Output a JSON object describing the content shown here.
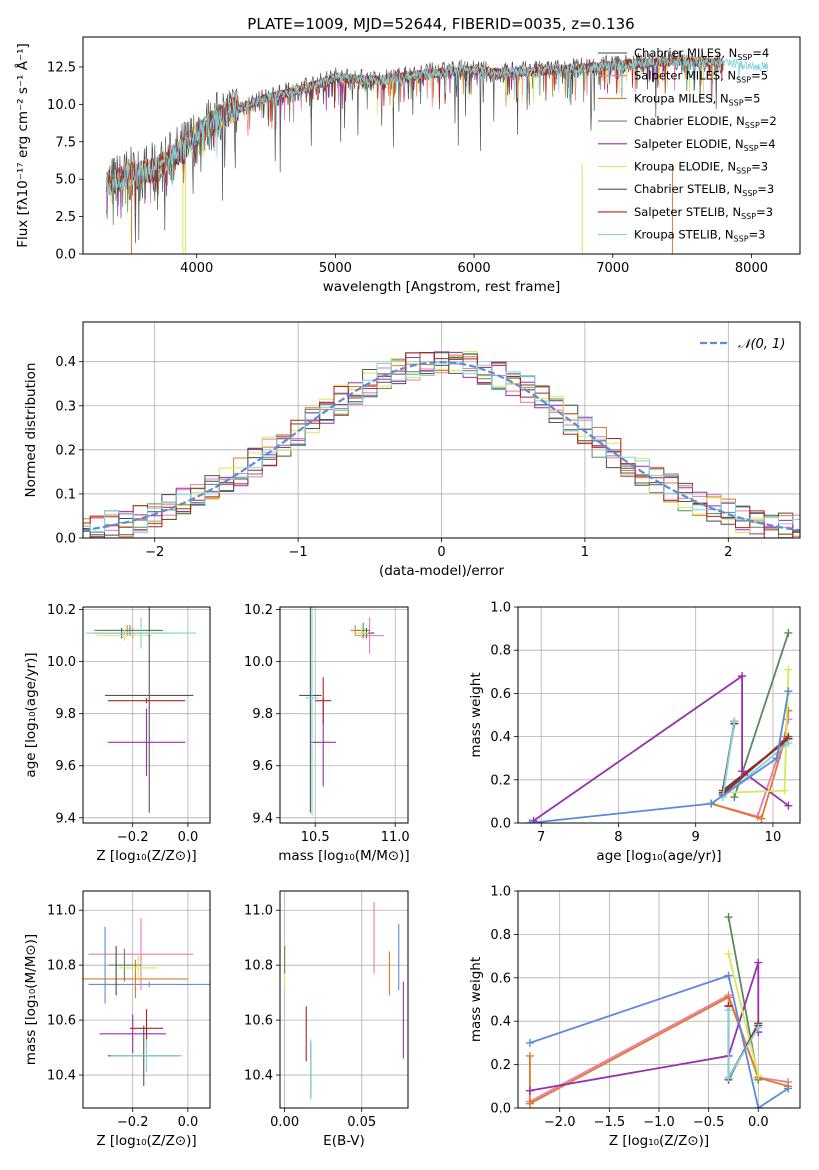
{
  "figure_title": "PLATE=1009, MJD=52644, FIBERID=0035, z=0.136",
  "models": [
    {
      "name": "Chabrier MILES",
      "nssp": 4,
      "color": "#4a4a4a"
    },
    {
      "name": "Salpeter MILES",
      "nssp": 5,
      "color": "#e87ab0"
    },
    {
      "name": "Kroupa MILES",
      "nssp": 5,
      "color": "#e07b2b"
    },
    {
      "name": "Chabrier ELODIE",
      "nssp": 2,
      "color": "#5a8a5a"
    },
    {
      "name": "Salpeter ELODIE",
      "nssp": 4,
      "color": "#9b2fae"
    },
    {
      "name": "Kroupa ELODIE",
      "nssp": 3,
      "color": "#d7e85a"
    },
    {
      "name": "Chabrier STELIB",
      "nssp": 3,
      "color": "#555555"
    },
    {
      "name": "Salpeter STELIB",
      "nssp": 3,
      "color": "#b22222"
    },
    {
      "name": "Kroupa STELIB",
      "nssp": 3,
      "color": "#7fd3dd"
    }
  ],
  "chart_data": [
    {
      "id": "spectrum",
      "type": "line",
      "xlabel": "wavelength [Angstrom, rest frame]",
      "ylabel_html": "Flux [fλ10⁻¹⁷ erg cm⁻² s⁻¹ Å⁻¹]",
      "xlim": [
        3180,
        8350
      ],
      "ylim": [
        0,
        14.5
      ],
      "xticks": [
        4000,
        5000,
        6000,
        7000,
        8000
      ],
      "yticks": [
        0.0,
        2.5,
        5.0,
        7.5,
        10.0,
        12.5
      ],
      "continuum_x": [
        3350,
        3500,
        3700,
        3900,
        4000,
        4200,
        4500,
        4800,
        5000,
        5300,
        5600,
        5900,
        6200,
        6600,
        7000,
        7400,
        7800,
        8100
      ],
      "continuum_y": [
        4.6,
        5.2,
        5.6,
        7.0,
        8.0,
        9.4,
        10.4,
        11.1,
        11.8,
        11.6,
        12.0,
        12.3,
        12.1,
        12.3,
        12.6,
        12.9,
        12.8,
        12.5
      ],
      "legend_position": "upper right"
    },
    {
      "id": "residuals",
      "type": "histogram",
      "xlabel": "(data-model)/error",
      "ylabel": "Normed distribution",
      "xlim": [
        -2.5,
        2.5
      ],
      "ylim": [
        0,
        0.49
      ],
      "xticks": [
        -2,
        -1,
        0,
        1,
        2
      ],
      "yticks": [
        0.0,
        0.1,
        0.2,
        0.3,
        0.4
      ],
      "bin_width": 0.1,
      "reference_curve": "N(0,1)",
      "legend_label": "𝒩(0, 1)",
      "legend_color": "#5b8bd9"
    },
    {
      "id": "age-vs-z",
      "type": "scatter",
      "xlabel": "Z [log₁₀(Z/Z⊙)]",
      "ylabel": "age  [log₁₀(age/yr)]",
      "xlim": [
        -0.38,
        0.08
      ],
      "ylim": [
        9.38,
        10.21
      ],
      "xticks": [
        -0.2,
        0.0
      ],
      "yticks": [
        9.4,
        9.6,
        9.8,
        10.0,
        10.2
      ],
      "points": [
        {
          "x": -0.24,
          "y": 10.11,
          "xerr": 0.1,
          "yerr": 0.02,
          "m": 0
        },
        {
          "x": -0.2,
          "y": 10.11,
          "xerr": 0.14,
          "yerr": 0.02,
          "m": 1
        },
        {
          "x": -0.22,
          "y": 10.12,
          "xerr": 0.12,
          "yerr": 0.02,
          "m": 2
        },
        {
          "x": -0.21,
          "y": 10.12,
          "xerr": 0.12,
          "yerr": 0.02,
          "m": 3
        },
        {
          "x": -0.15,
          "y": 9.69,
          "xerr": 0.14,
          "yerr": 0.13,
          "m": 4
        },
        {
          "x": -0.23,
          "y": 10.1,
          "xerr": 0.1,
          "yerr": 0.02,
          "m": 5
        },
        {
          "x": -0.14,
          "y": 9.87,
          "xerr": 0.16,
          "yerr": 0.45,
          "m": 6
        },
        {
          "x": -0.15,
          "y": 9.85,
          "xerr": 0.14,
          "yerr": 0.01,
          "m": 7
        },
        {
          "x": -0.17,
          "y": 10.11,
          "xerr": 0.2,
          "yerr": 0.06,
          "m": 8
        }
      ]
    },
    {
      "id": "age-vs-mass",
      "type": "scatter",
      "xlabel": "mass [log₁₀(M/M⊙)]",
      "ylabel": "",
      "xlim": [
        10.28,
        11.08
      ],
      "ylim": [
        9.38,
        10.21
      ],
      "xticks": [
        10.5,
        11.0
      ],
      "yticks": [
        9.4,
        9.6,
        9.8,
        10.0,
        10.2
      ],
      "points": [
        {
          "x": 10.82,
          "y": 10.11,
          "xerr": 0.05,
          "yerr": 0.02,
          "m": 0
        },
        {
          "x": 10.84,
          "y": 10.1,
          "xerr": 0.09,
          "yerr": 0.07,
          "m": 1
        },
        {
          "x": 10.75,
          "y": 10.12,
          "xerr": 0.03,
          "yerr": 0.02,
          "m": 2
        },
        {
          "x": 10.8,
          "y": 10.12,
          "xerr": 0.04,
          "yerr": 0.03,
          "m": 3
        },
        {
          "x": 10.55,
          "y": 9.69,
          "xerr": 0.08,
          "yerr": 0.17,
          "m": 4
        },
        {
          "x": 10.79,
          "y": 10.11,
          "xerr": 0.04,
          "yerr": 0.02,
          "m": 5
        },
        {
          "x": 10.47,
          "y": 9.87,
          "xerr": 0.07,
          "yerr": 0.45,
          "m": 6
        },
        {
          "x": 10.55,
          "y": 9.85,
          "xerr": 0.05,
          "yerr": 0.09,
          "m": 7
        },
        {
          "x": 10.48,
          "y": 9.86,
          "xerr": 0.04,
          "yerr": 0.45,
          "m": 8
        }
      ]
    },
    {
      "id": "weight-vs-age",
      "type": "line",
      "xlabel": "age  [log₁₀(age/yr)]",
      "ylabel": "mass weight",
      "xlim": [
        6.7,
        10.35
      ],
      "ylim": [
        0,
        1.0
      ],
      "xticks": [
        7,
        8,
        9,
        10
      ],
      "yticks": [
        0.0,
        0.2,
        0.4,
        0.6,
        0.8,
        1.0
      ],
      "series": [
        {
          "m": 0,
          "x": [
            9.5,
            9.35,
            10.2
          ],
          "y": [
            0.46,
            0.15,
            0.39
          ]
        },
        {
          "m": 1,
          "x": [
            9.2,
            9.8,
            10.15,
            10.2
          ],
          "y": [
            0.09,
            0.03,
            0.4,
            0.48
          ]
        },
        {
          "m": 2,
          "x": [
            9.2,
            9.85,
            10.15,
            10.2
          ],
          "y": [
            0.09,
            0.02,
            0.38,
            0.52
          ]
        },
        {
          "m": 3,
          "x": [
            9.5,
            10.2
          ],
          "y": [
            0.12,
            0.88
          ]
        },
        {
          "m": 4,
          "x": [
            6.9,
            9.6,
            9.6,
            10.2
          ],
          "y": [
            0.01,
            0.68,
            0.24,
            0.08
          ]
        },
        {
          "m": 5,
          "x": [
            9.35,
            10.15,
            10.2
          ],
          "y": [
            0.14,
            0.15,
            0.71
          ]
        },
        {
          "m": 6,
          "x": [
            9.5,
            9.35,
            10.2
          ],
          "y": [
            0.47,
            0.13,
            0.4
          ]
        },
        {
          "m": 7,
          "x": [
            9.5,
            9.35,
            10.2
          ],
          "y": [
            0.47,
            0.14,
            0.39
          ]
        },
        {
          "m": 8,
          "x": [
            9.5,
            9.35,
            10.2
          ],
          "y": [
            0.47,
            0.12,
            0.37
          ]
        },
        {
          "m": 9,
          "x": [
            6.85,
            9.2,
            10.05,
            10.2
          ],
          "y": [
            0.0,
            0.09,
            0.3,
            0.61
          ]
        }
      ]
    },
    {
      "id": "mass-vs-z",
      "type": "scatter",
      "xlabel": "Z [log₁₀(Z/Z⊙)]",
      "ylabel": "mass [log₁₀(M/M⊙)]",
      "xlim": [
        -0.38,
        0.08
      ],
      "ylim": [
        10.28,
        11.07
      ],
      "xticks": [
        -0.2,
        0.0
      ],
      "yticks": [
        10.4,
        10.6,
        10.8,
        11.0
      ],
      "points": [
        {
          "x": -0.14,
          "y": 10.73,
          "xerr": 0.22,
          "yerr": 0.01,
          "m": 10
        },
        {
          "x": -0.17,
          "y": 10.84,
          "xerr": 0.19,
          "yerr": 0.13,
          "m": 1
        },
        {
          "x": -0.19,
          "y": 10.75,
          "xerr": 0.19,
          "yerr": 0.07,
          "m": 2
        },
        {
          "x": -0.23,
          "y": 10.8,
          "xerr": 0.06,
          "yerr": 0.06,
          "m": 3
        },
        {
          "x": -0.2,
          "y": 10.55,
          "xerr": 0.12,
          "yerr": 0.07,
          "m": 4
        },
        {
          "x": -0.18,
          "y": 10.79,
          "xerr": 0.07,
          "yerr": 0.05,
          "m": 5
        },
        {
          "x": -0.16,
          "y": 10.47,
          "xerr": 0.13,
          "yerr": 0.11,
          "m": 6
        },
        {
          "x": -0.15,
          "y": 10.57,
          "xerr": 0.06,
          "yerr": 0.07,
          "m": 7
        },
        {
          "x": -0.15,
          "y": 10.47,
          "xerr": 0.13,
          "yerr": 0.06,
          "m": 8
        },
        {
          "x": -0.3,
          "y": 10.8,
          "xerr": 0.0,
          "yerr": 0.14,
          "m": 9
        },
        {
          "x": -0.26,
          "y": 10.78,
          "xerr": 0.0,
          "yerr": 0.09,
          "m": 0
        }
      ]
    },
    {
      "id": "mass-vs-ebv",
      "type": "scatter",
      "xlabel": "E(B-V)",
      "ylabel": "",
      "xlim": [
        -0.003,
        0.08
      ],
      "ylim": [
        10.28,
        11.07
      ],
      "xticks": [
        0.0,
        0.05
      ],
      "yticks": [
        10.4,
        10.6,
        10.8,
        11.0
      ],
      "points": [
        {
          "x": 0.0,
          "y": 10.8,
          "xerr": 0,
          "yerr": 0.08,
          "m": 5
        },
        {
          "x": 0.0,
          "y": 10.82,
          "xerr": 0,
          "yerr": 0.05,
          "m": 3
        },
        {
          "x": 0.014,
          "y": 10.55,
          "xerr": 0,
          "yerr": 0.1,
          "m": 7
        },
        {
          "x": 0.017,
          "y": 10.42,
          "xerr": 0,
          "yerr": 0.1,
          "m": 6
        },
        {
          "x": 0.017,
          "y": 10.42,
          "xerr": 0,
          "yerr": 0.11,
          "m": 8
        },
        {
          "x": 0.058,
          "y": 10.9,
          "xerr": 0,
          "yerr": 0.13,
          "m": 1
        },
        {
          "x": 0.068,
          "y": 10.77,
          "xerr": 0,
          "yerr": 0.08,
          "m": 2
        },
        {
          "x": 0.074,
          "y": 10.83,
          "xerr": 0,
          "yerr": 0.12,
          "m": 9
        },
        {
          "x": 0.077,
          "y": 10.6,
          "xerr": 0,
          "yerr": 0.14,
          "m": 4
        }
      ]
    },
    {
      "id": "weight-vs-z",
      "type": "line",
      "xlabel": "Z [log₁₀(Z/Z⊙)]",
      "ylabel": "mass weight",
      "xlim": [
        -2.42,
        0.42
      ],
      "ylim": [
        0,
        1.0
      ],
      "xticks": [
        -2.0,
        -1.5,
        -1.0,
        -0.5,
        0.0
      ],
      "yticks": [
        0.0,
        0.2,
        0.4,
        0.6,
        0.8,
        1.0
      ],
      "series": [
        {
          "m": 1,
          "x": [
            -2.3,
            -0.3,
            0.0,
            0.3
          ],
          "y": [
            0.03,
            0.52,
            0.14,
            0.12
          ]
        },
        {
          "m": 2,
          "x": [
            -2.3,
            -2.3,
            -0.3,
            0.0,
            0.3
          ],
          "y": [
            0.24,
            0.02,
            0.51,
            0.14,
            0.1
          ]
        },
        {
          "m": 3,
          "x": [
            -0.3,
            0.0
          ],
          "y": [
            0.88,
            0.13
          ]
        },
        {
          "m": 4,
          "x": [
            -2.3,
            -0.3,
            0.0,
            0.0
          ],
          "y": [
            0.08,
            0.24,
            0.67,
            0.35
          ]
        },
        {
          "m": 5,
          "x": [
            -0.3,
            0.0
          ],
          "y": [
            0.71,
            0.15
          ]
        },
        {
          "m": 6,
          "x": [
            -0.3,
            -0.3,
            0.0
          ],
          "y": [
            0.47,
            0.13,
            0.39
          ]
        },
        {
          "m": 7,
          "x": [
            -0.3,
            -0.3,
            0.0
          ],
          "y": [
            0.47,
            0.14,
            0.38
          ]
        },
        {
          "m": 8,
          "x": [
            -0.3,
            -0.3,
            0.0
          ],
          "y": [
            0.45,
            0.14,
            0.37
          ]
        },
        {
          "m": 9,
          "x": [
            -2.3,
            -0.3,
            0.0,
            0.3
          ],
          "y": [
            0.3,
            0.61,
            0.0,
            0.09
          ]
        }
      ]
    }
  ],
  "extra_colors": [
    "#5b8bd9",
    "#6a8fd9"
  ]
}
